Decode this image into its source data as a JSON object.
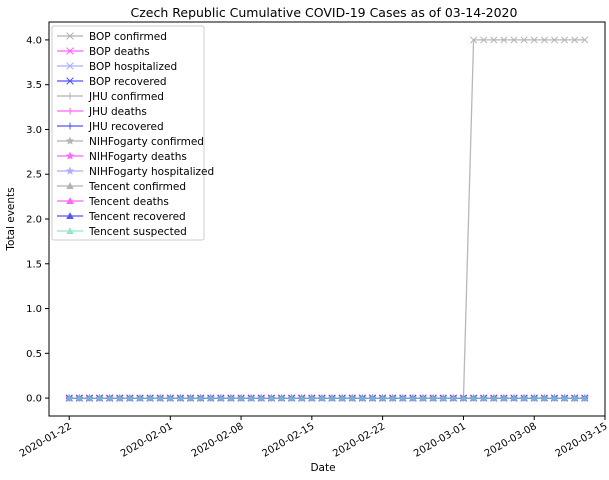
{
  "chart_data": {
    "type": "line",
    "title": "Czech Republic Cumulative COVID-19 Cases as of 03-14-2020",
    "xlabel": "Date",
    "ylabel": "Total events",
    "x_range": [
      "2020-01-20",
      "2020-03-15"
    ],
    "ylim": [
      -0.2,
      4.2
    ],
    "x_ticks": [
      "2020-01-22",
      "2020-02-01",
      "2020-02-08",
      "2020-02-15",
      "2020-02-22",
      "2020-03-01",
      "2020-03-08",
      "2020-03-15"
    ],
    "y_ticks": [
      "0.0",
      "0.5",
      "1.0",
      "1.5",
      "2.0",
      "2.5",
      "3.0",
      "3.5",
      "4.0"
    ],
    "grid": false,
    "legend_position": "top-left",
    "dates_start": "2020-01-22",
    "dates_end": "2020-03-13",
    "series": [
      {
        "name": "BOP confirmed",
        "color": "#a0a0a0",
        "marker": "x",
        "steps": [
          {
            "from": "2020-01-22",
            "value": 0
          },
          {
            "from": "2020-03-02",
            "value": 4
          }
        ]
      },
      {
        "name": "BOP deaths",
        "color": "#ff3fff",
        "marker": "x",
        "steps": [
          {
            "from": "2020-01-22",
            "value": 0
          }
        ]
      },
      {
        "name": "BOP hospitalized",
        "color": "#9a9aff",
        "marker": "x",
        "steps": [
          {
            "from": "2020-01-22",
            "value": 0
          }
        ]
      },
      {
        "name": "BOP recovered",
        "color": "#2a2aff",
        "marker": "x",
        "steps": [
          {
            "from": "2020-01-22",
            "value": 0
          }
        ]
      },
      {
        "name": "JHU confirmed",
        "color": "#a0a0a0",
        "marker": "+",
        "steps": [
          {
            "from": "2020-01-22",
            "value": 0
          }
        ]
      },
      {
        "name": "JHU deaths",
        "color": "#ff3fff",
        "marker": "+",
        "steps": [
          {
            "from": "2020-01-22",
            "value": 0
          }
        ]
      },
      {
        "name": "JHU recovered",
        "color": "#2a2aff",
        "marker": "+",
        "steps": [
          {
            "from": "2020-01-22",
            "value": 0
          }
        ]
      },
      {
        "name": "NIHFogarty confirmed",
        "color": "#a0a0a0",
        "marker": "*",
        "steps": [
          {
            "from": "2020-01-22",
            "value": 0
          }
        ]
      },
      {
        "name": "NIHFogarty deaths",
        "color": "#ff3fff",
        "marker": "*",
        "steps": [
          {
            "from": "2020-01-22",
            "value": 0
          }
        ]
      },
      {
        "name": "NIHFogarty hospitalized",
        "color": "#9a9aff",
        "marker": "*",
        "steps": [
          {
            "from": "2020-01-22",
            "value": 0
          }
        ]
      },
      {
        "name": "Tencent confirmed",
        "color": "#a0a0a0",
        "marker": "^",
        "steps": [
          {
            "from": "2020-01-22",
            "value": 0
          }
        ]
      },
      {
        "name": "Tencent deaths",
        "color": "#ff3fff",
        "marker": "^",
        "steps": [
          {
            "from": "2020-01-22",
            "value": 0
          }
        ]
      },
      {
        "name": "Tencent recovered",
        "color": "#2a2aff",
        "marker": "^",
        "steps": [
          {
            "from": "2020-01-22",
            "value": 0
          }
        ]
      },
      {
        "name": "Tencent suspected",
        "color": "#7fdfbf",
        "marker": "^",
        "steps": [
          {
            "from": "2020-01-22",
            "value": 0
          }
        ]
      }
    ]
  }
}
